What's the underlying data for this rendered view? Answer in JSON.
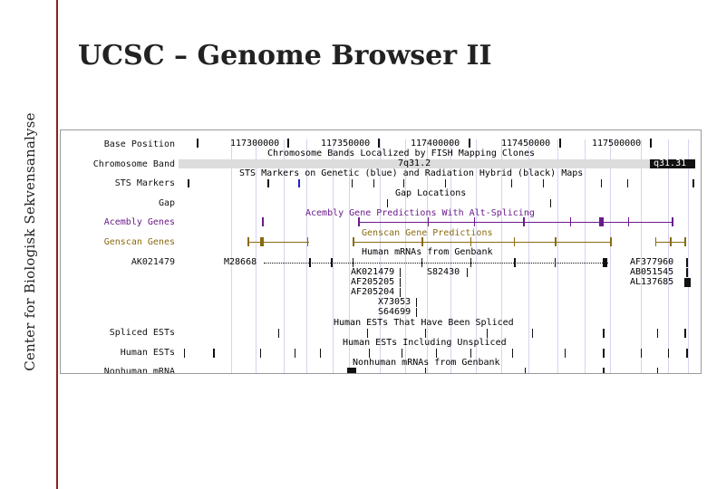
{
  "side_label": "Center for Biologisk Sekvensanalyse",
  "title": "UCSC – Genome Browser II",
  "colors": {
    "black": "#111111",
    "purple": "#6a1b8a",
    "brown": "#8a6a10",
    "blue": "#2222cc",
    "band": "#dcdcdc",
    "grid": "#d4d4ef",
    "accent_line": "#8b2020"
  },
  "tracks": [
    {
      "label": "Base Position",
      "color": "#111111"
    },
    {
      "label": "Chromosome Band",
      "color": "#111111"
    },
    {
      "label": "STS Markers",
      "color": "#111111"
    },
    {
      "label": "Gap",
      "color": "#111111"
    },
    {
      "label": "Acembly Genes",
      "color": "#6a1b8a"
    },
    {
      "label": "Genscan Genes",
      "color": "#8a6a10"
    },
    {
      "label": "AK021479",
      "color": "#111111"
    },
    {
      "label": "Spliced ESTs",
      "color": "#111111"
    },
    {
      "label": "Human ESTs",
      "color": "#111111"
    },
    {
      "label": "Nonhuman mRNA",
      "color": "#111111"
    }
  ],
  "positions": [
    "117300000",
    "117350000",
    "117400000",
    "117450000",
    "117500000"
  ],
  "band_name": "7q31.2",
  "band_end": "q31.31",
  "headings": {
    "chromosome_bands": "Chromosome Bands Localized by FISH Mapping Clones",
    "sts": "STS Markers on Genetic (blue) and Radiation Hybrid (black) Maps",
    "gap": "Gap Locations",
    "acembly": "Acembly Gene Predictions With Alt-Splicing",
    "genscan": "Genscan Gene Predictions",
    "mrna": "Human mRNAs from Genbank",
    "spliced": "Human ESTs That Have Been Spliced",
    "ests": "Human ESTs Including Unspliced",
    "nonhuman": "Nonhuman mRNAs from Genbank"
  },
  "mrnas": {
    "m": "M28668",
    "a1": "AK021479",
    "s1": "S82430",
    "a2": "AF205205",
    "a3": "AF205204",
    "x": "X73053",
    "s2": "S64699",
    "r1": "AF377960",
    "r2": "AB051545",
    "r3": "AL137685"
  }
}
